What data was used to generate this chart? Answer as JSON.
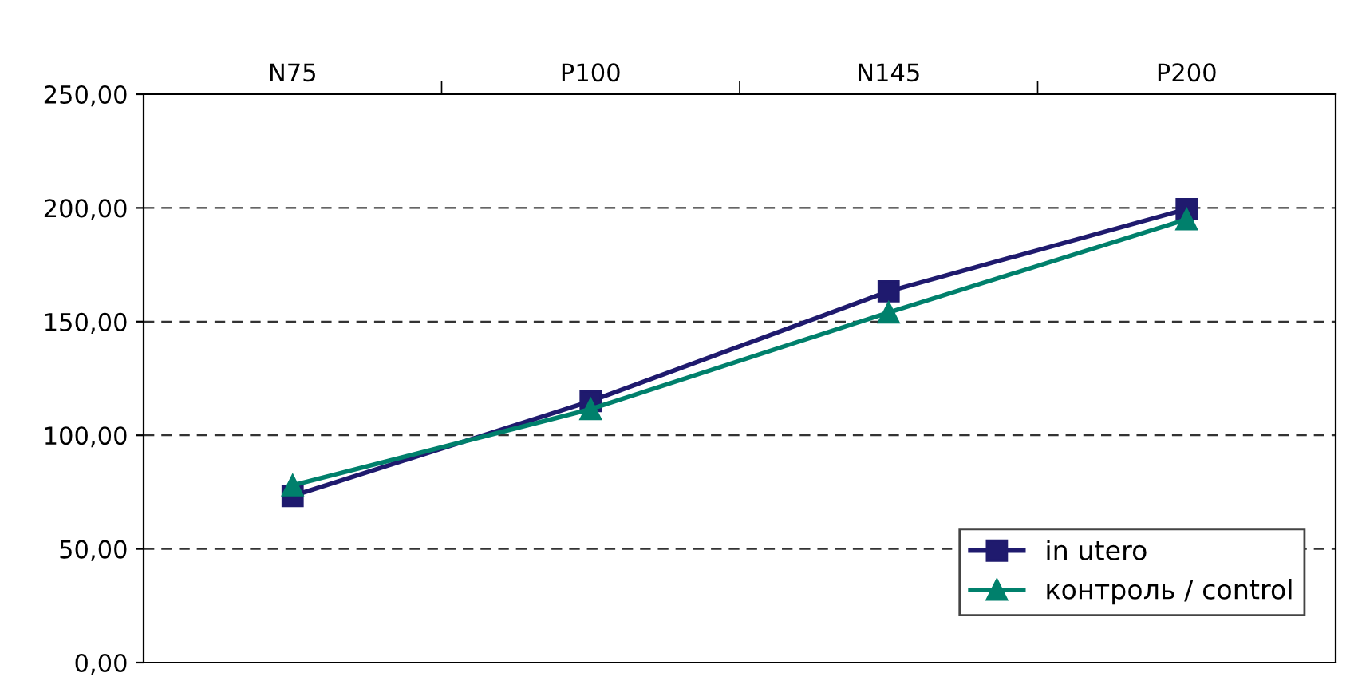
{
  "chart_data": {
    "type": "line",
    "categories": [
      "N75",
      "P100",
      "N145",
      "P200"
    ],
    "series": [
      {
        "name": "in utero",
        "color": "#1f1a6e",
        "marker": "square",
        "values": [
          73.3,
          115,
          163.3,
          199.5
        ]
      },
      {
        "name": "контроль / control",
        "color": "#00806c",
        "marker": "triangle",
        "values": [
          78,
          111.5,
          154,
          195
        ]
      }
    ],
    "ylim": [
      0,
      250
    ],
    "yticks": [
      {
        "value": 0,
        "label": "0,00"
      },
      {
        "value": 50,
        "label": "50,00"
      },
      {
        "value": 100,
        "label": "100,00"
      },
      {
        "value": 150,
        "label": "150,00"
      },
      {
        "value": 200,
        "label": "200,00"
      },
      {
        "value": 250,
        "label": "250,00"
      }
    ],
    "grid": "y",
    "legend": "bottom right",
    "line_style": "solid"
  }
}
